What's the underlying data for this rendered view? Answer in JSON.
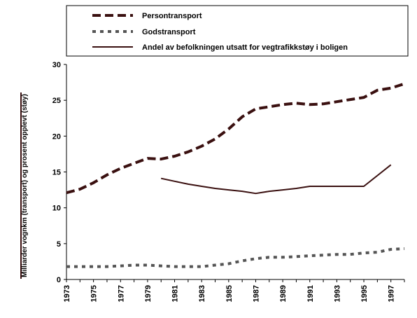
{
  "chart_data": {
    "type": "line",
    "title": "",
    "xlabel": "",
    "ylabel": "Milliarder vognkm (transport) og prosent opplevt (støy)",
    "xlim": [
      1973,
      1998
    ],
    "ylim": [
      0,
      30
    ],
    "yticks": [
      0,
      5,
      10,
      15,
      20,
      25,
      30
    ],
    "xticks": [
      "1973",
      "1975",
      "1977",
      "1979",
      "1981",
      "1983",
      "1985",
      "1987",
      "1989",
      "1991",
      "1993",
      "1995",
      "1997"
    ],
    "grid": false,
    "legend_position": "top",
    "series": [
      {
        "name": "Persontransport",
        "style": "long-dash",
        "color": "#3a1010",
        "x": [
          1973,
          1974,
          1975,
          1976,
          1977,
          1978,
          1979,
          1980,
          1981,
          1982,
          1983,
          1984,
          1985,
          1986,
          1987,
          1988,
          1989,
          1990,
          1991,
          1992,
          1993,
          1994,
          1995,
          1996,
          1997,
          1998
        ],
        "y": [
          12.1,
          12.6,
          13.5,
          14.6,
          15.5,
          16.2,
          16.9,
          16.8,
          17.2,
          17.8,
          18.6,
          19.6,
          21.0,
          22.7,
          23.8,
          24.1,
          24.4,
          24.6,
          24.4,
          24.5,
          24.8,
          25.1,
          25.4,
          26.4,
          26.7,
          27.3
        ]
      },
      {
        "name": "Godstransport",
        "style": "dotted",
        "color": "#555555",
        "x": [
          1973,
          1974,
          1975,
          1976,
          1977,
          1978,
          1979,
          1980,
          1981,
          1982,
          1983,
          1984,
          1985,
          1986,
          1987,
          1988,
          1989,
          1990,
          1991,
          1992,
          1993,
          1994,
          1995,
          1996,
          1997,
          1998
        ],
        "y": [
          1.8,
          1.8,
          1.8,
          1.8,
          1.9,
          2.0,
          2.0,
          1.9,
          1.8,
          1.8,
          1.8,
          2.0,
          2.2,
          2.6,
          2.9,
          3.1,
          3.1,
          3.2,
          3.3,
          3.4,
          3.5,
          3.5,
          3.7,
          3.8,
          4.2,
          4.3
        ]
      },
      {
        "name": "Andel av befolkningen utsatt for vegtrafikkstøy i boligen",
        "style": "solid",
        "color": "#3a1010",
        "x": [
          1980,
          1981,
          1982,
          1983,
          1984,
          1985,
          1986,
          1987,
          1988,
          1989,
          1990,
          1991,
          1992,
          1993,
          1994,
          1995,
          1996,
          1997
        ],
        "y": [
          14.1,
          13.7,
          13.3,
          13.0,
          12.7,
          12.5,
          12.3,
          12.0,
          12.3,
          12.5,
          12.7,
          13.0,
          13.0,
          13.0,
          13.0,
          13.0,
          14.5,
          16.0
        ]
      }
    ]
  }
}
